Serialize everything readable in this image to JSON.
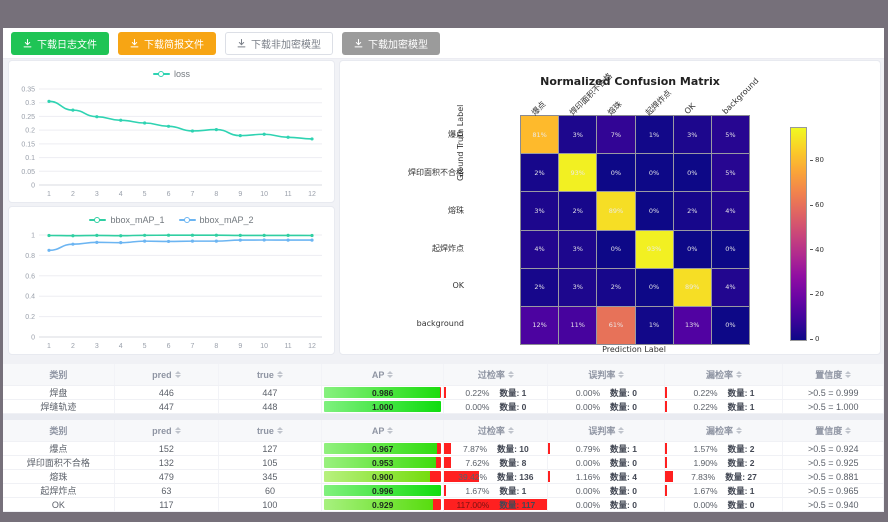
{
  "toolbar": {
    "buttons": [
      {
        "label": "下载日志文件",
        "style": "green"
      },
      {
        "label": "下载简报文件",
        "style": "orange"
      },
      {
        "label": "下载非加密模型",
        "style": "plain"
      },
      {
        "label": "下载加密模型",
        "style": "gray"
      }
    ]
  },
  "chart_data": [
    {
      "id": "loss",
      "type": "line",
      "x": [
        1,
        2,
        3,
        4,
        5,
        6,
        7,
        8,
        9,
        10,
        11,
        12
      ],
      "x_labels": [
        "1",
        "2",
        "3",
        "4",
        "5",
        "6",
        "7",
        "8",
        "9",
        "10",
        "11",
        "12"
      ],
      "y_ticks": [
        "0",
        "0.05",
        "0.1",
        "0.15",
        "0.2",
        "0.25",
        "0.3",
        "0.35"
      ],
      "ylim": [
        0,
        0.35
      ],
      "legend_position": "top",
      "grid": true,
      "series": [
        {
          "name": "loss",
          "color": "#2fd3b2",
          "values": [
            0.305,
            0.273,
            0.249,
            0.236,
            0.226,
            0.214,
            0.197,
            0.202,
            0.18,
            0.185,
            0.174,
            0.168
          ]
        }
      ]
    },
    {
      "id": "bbox_map",
      "type": "line",
      "x": [
        1,
        2,
        3,
        4,
        5,
        6,
        7,
        8,
        9,
        10,
        11,
        12
      ],
      "x_labels": [
        "1",
        "2",
        "3",
        "4",
        "5",
        "6",
        "7",
        "8",
        "9",
        "10",
        "11",
        "12"
      ],
      "y_ticks": [
        "0",
        "0.2",
        "0.4",
        "0.6",
        "0.8",
        "1"
      ],
      "ylim": [
        0,
        1
      ],
      "legend_position": "top",
      "grid": true,
      "series": [
        {
          "name": "bbox_mAP_1",
          "color": "#30cfa2",
          "values": [
            0.995,
            0.993,
            0.996,
            0.993,
            0.997,
            0.998,
            0.998,
            0.998,
            0.996,
            0.996,
            0.996,
            0.995
          ]
        },
        {
          "name": "bbox_mAP_2",
          "color": "#6cb5f2",
          "values": [
            0.85,
            0.91,
            0.928,
            0.925,
            0.94,
            0.937,
            0.94,
            0.94,
            0.95,
            0.951,
            0.95,
            0.95
          ]
        }
      ]
    },
    {
      "id": "confusion",
      "type": "heatmap",
      "title": "Normalized Confusion Matrix",
      "xlabel": "Prediction Label",
      "ylabel": "Ground Truth Label",
      "labels": [
        "爆点",
        "焊印面积不合格",
        "熔珠",
        "起焊炸点",
        "OK",
        "background"
      ],
      "unit": "%",
      "vmax": 95,
      "values": [
        [
          81,
          3,
          7,
          1,
          3,
          5
        ],
        [
          2,
          93,
          0,
          0,
          0,
          5
        ],
        [
          3,
          2,
          89,
          0,
          2,
          4
        ],
        [
          4,
          3,
          0,
          93,
          0,
          0
        ],
        [
          2,
          3,
          2,
          0,
          89,
          4
        ],
        [
          12,
          11,
          61,
          1,
          13,
          0
        ]
      ],
      "colorbar_ticks": [
        "80",
        "60",
        "40",
        "20",
        "0"
      ],
      "colormap": "plasma"
    }
  ],
  "tables": {
    "columns": [
      {
        "label": "类别",
        "sortable": false
      },
      {
        "label": "pred",
        "sortable": true
      },
      {
        "label": "true",
        "sortable": true
      },
      {
        "label": "AP",
        "sortable": true
      },
      {
        "label": "过检率",
        "sortable": true
      },
      {
        "label": "误判率",
        "sortable": true
      },
      {
        "label": "漏检率",
        "sortable": true
      },
      {
        "label": "置信度",
        "sortable": true
      }
    ],
    "quantity_label": "数量:",
    "groups": [
      {
        "rows": [
          {
            "cat": "焊盘",
            "pred": "446",
            "true": "447",
            "ap": "0.986",
            "over_pct": "0.22%",
            "over_n": "1",
            "mis_pct": "0.00%",
            "mis_n": "0",
            "miss_pct": "0.22%",
            "miss_n": "1",
            "conf": ">0.5 = 0.999"
          },
          {
            "cat": "焊缝轨迹",
            "pred": "447",
            "true": "448",
            "ap": "1.000",
            "over_pct": "0.00%",
            "over_n": "0",
            "mis_pct": "0.00%",
            "mis_n": "0",
            "miss_pct": "0.22%",
            "miss_n": "1",
            "conf": ">0.5 = 1.000"
          }
        ]
      },
      {
        "rows": [
          {
            "cat": "爆点",
            "pred": "152",
            "true": "127",
            "ap": "0.967",
            "over_pct": "7.87%",
            "over_n": "10",
            "mis_pct": "0.79%",
            "mis_n": "1",
            "miss_pct": "1.57%",
            "miss_n": "2",
            "conf": ">0.5 = 0.924"
          },
          {
            "cat": "焊印面积不合格",
            "pred": "132",
            "true": "105",
            "ap": "0.953",
            "over_pct": "7.62%",
            "over_n": "8",
            "mis_pct": "0.00%",
            "mis_n": "0",
            "miss_pct": "1.90%",
            "miss_n": "2",
            "conf": ">0.5 = 0.925"
          },
          {
            "cat": "熔珠",
            "pred": "479",
            "true": "345",
            "ap": "0.900",
            "over_pct": "39.42%",
            "over_n": "136",
            "mis_pct": "1.16%",
            "mis_n": "4",
            "miss_pct": "7.83%",
            "miss_n": "27",
            "conf": ">0.5 = 0.881"
          },
          {
            "cat": "起焊炸点",
            "pred": "63",
            "true": "60",
            "ap": "0.996",
            "over_pct": "1.67%",
            "over_n": "1",
            "mis_pct": "0.00%",
            "mis_n": "0",
            "miss_pct": "1.67%",
            "miss_n": "1",
            "conf": ">0.5 = 0.965"
          },
          {
            "cat": "OK",
            "pred": "117",
            "true": "100",
            "ap": "0.929",
            "over_pct": "117.00%",
            "over_n": "117",
            "mis_pct": "0.00%",
            "mis_n": "0",
            "miss_pct": "0.00%",
            "miss_n": "0",
            "conf": ">0.5 = 0.940"
          }
        ]
      }
    ]
  }
}
